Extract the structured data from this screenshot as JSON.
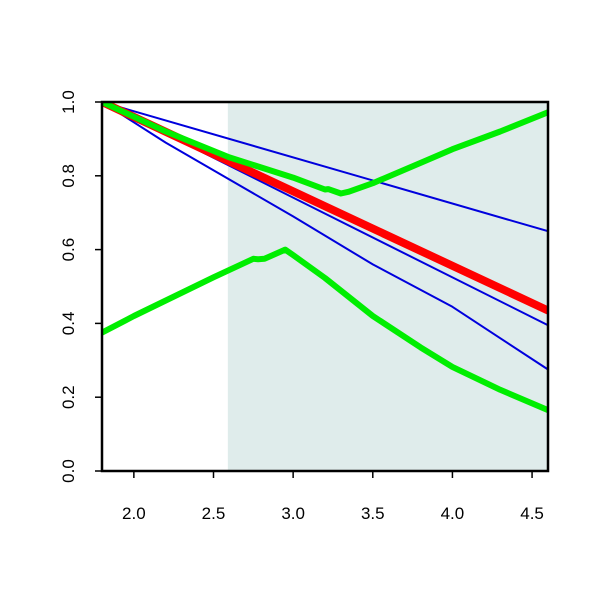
{
  "chart_data": {
    "type": "line",
    "title": "",
    "xlabel": "",
    "ylabel": "",
    "xlim": [
      1.8,
      4.6
    ],
    "ylim": [
      0.0,
      1.0
    ],
    "x_ticks": [
      2.0,
      2.5,
      3.0,
      3.5,
      4.0,
      4.5
    ],
    "x_tick_labels": [
      "2.0",
      "2.5",
      "3.0",
      "3.5",
      "4.0",
      "4.5"
    ],
    "y_ticks": [
      0.0,
      0.2,
      0.4,
      0.6,
      0.8,
      1.0
    ],
    "y_tick_labels": [
      "0.0",
      "0.2",
      "0.4",
      "0.6",
      "0.8",
      "1.0"
    ],
    "grid": false,
    "legend": "none",
    "shaded_region": {
      "x_from": 2.59,
      "x_to": 4.6,
      "color": "#dfeceb"
    },
    "series": [
      {
        "color": "#0000dd",
        "width": 2,
        "points": [
          [
            1.8,
            1.0
          ],
          [
            4.6,
            0.65
          ]
        ]
      },
      {
        "color": "#0000dd",
        "width": 2,
        "points": [
          [
            1.8,
            1.0
          ],
          [
            4.6,
            0.395
          ]
        ]
      },
      {
        "color": "#0000dd",
        "width": 2,
        "points": [
          [
            1.8,
            1.0
          ],
          [
            2.2,
            0.89
          ],
          [
            2.6,
            0.79
          ],
          [
            3.0,
            0.69
          ],
          [
            3.5,
            0.56
          ],
          [
            4.0,
            0.445
          ],
          [
            4.3,
            0.36
          ],
          [
            4.6,
            0.275
          ]
        ]
      },
      {
        "color": "#ff0000",
        "width": 8,
        "points": [
          [
            1.8,
            1.0
          ],
          [
            4.6,
            0.435
          ]
        ]
      },
      {
        "color": "#00ee00",
        "width": 6,
        "points": [
          [
            1.8,
            1.0
          ],
          [
            2.2,
            0.92
          ],
          [
            2.6,
            0.85
          ],
          [
            3.0,
            0.795
          ],
          [
            3.2,
            0.763
          ],
          [
            3.22,
            0.764
          ],
          [
            3.3,
            0.752
          ],
          [
            3.35,
            0.757
          ],
          [
            3.5,
            0.78
          ],
          [
            3.8,
            0.835
          ],
          [
            4.0,
            0.872
          ],
          [
            4.3,
            0.92
          ],
          [
            4.6,
            0.972
          ]
        ]
      },
      {
        "color": "#00ee00",
        "width": 6,
        "points": [
          [
            1.8,
            0.375
          ],
          [
            2.0,
            0.42
          ],
          [
            2.5,
            0.525
          ],
          [
            2.75,
            0.575
          ],
          [
            2.78,
            0.574
          ],
          [
            2.82,
            0.575
          ],
          [
            2.95,
            0.6
          ],
          [
            3.0,
            0.585
          ],
          [
            3.2,
            0.523
          ],
          [
            3.5,
            0.42
          ],
          [
            3.8,
            0.335
          ],
          [
            4.0,
            0.282
          ],
          [
            4.3,
            0.22
          ],
          [
            4.6,
            0.165
          ]
        ]
      }
    ]
  }
}
